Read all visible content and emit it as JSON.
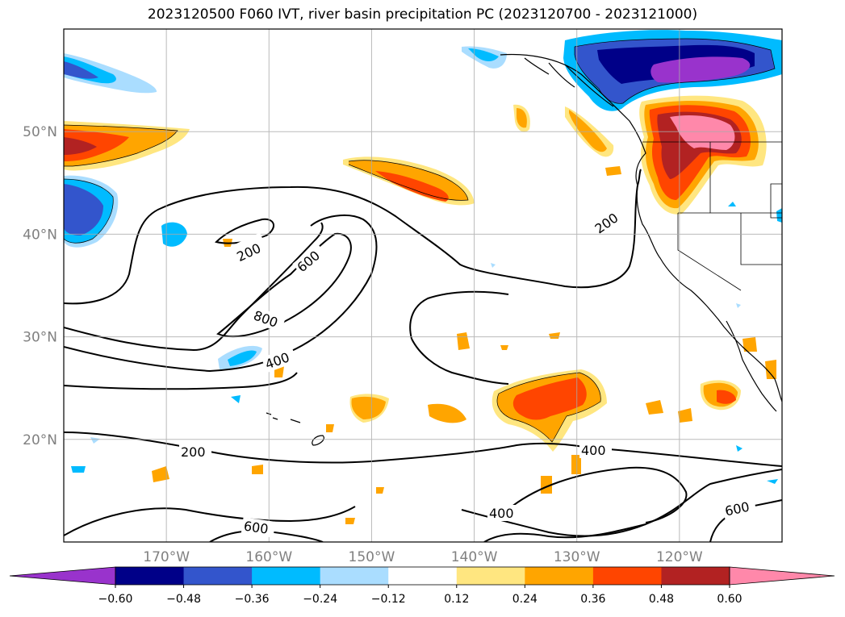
{
  "chart_data": {
    "type": "filled_contour_map",
    "title": "2023120500 F060 IVT, river basin precipitation PC (2023120700 - 2023121000)",
    "lat_ticks": [
      "20°N",
      "30°N",
      "40°N",
      "50°N"
    ],
    "lat_values": [
      20,
      30,
      40,
      50
    ],
    "lon_ticks": [
      "170°W",
      "160°W",
      "150°W",
      "140°W",
      "130°W",
      "120°W"
    ],
    "lon_values": [
      -170,
      -160,
      -150,
      -140,
      -130,
      -120
    ],
    "extent": {
      "lon": [
        -180,
        -110
      ],
      "lat": [
        10,
        60
      ]
    },
    "grid": true,
    "colorbar": {
      "ticks": [
        "−0.60",
        "−0.48",
        "−0.36",
        "−0.24",
        "−0.12",
        "0.12",
        "0.24",
        "0.36",
        "0.48",
        "0.60"
      ],
      "levels": [
        -0.6,
        -0.48,
        -0.36,
        -0.24,
        -0.12,
        0.12,
        0.24,
        0.36,
        0.48,
        0.6
      ],
      "colors": [
        "#9933cc",
        "#000088",
        "#3355cc",
        "#00bbff",
        "#aaddff",
        "#ffffff",
        "#ffe680",
        "#ffa500",
        "#ff4500",
        "#b22222",
        "#ff88aa"
      ],
      "extend": "both"
    },
    "ivt_contour_labels": [
      "200",
      "200",
      "200",
      "400",
      "400",
      "400",
      "600",
      "600",
      "600",
      "800"
    ]
  }
}
